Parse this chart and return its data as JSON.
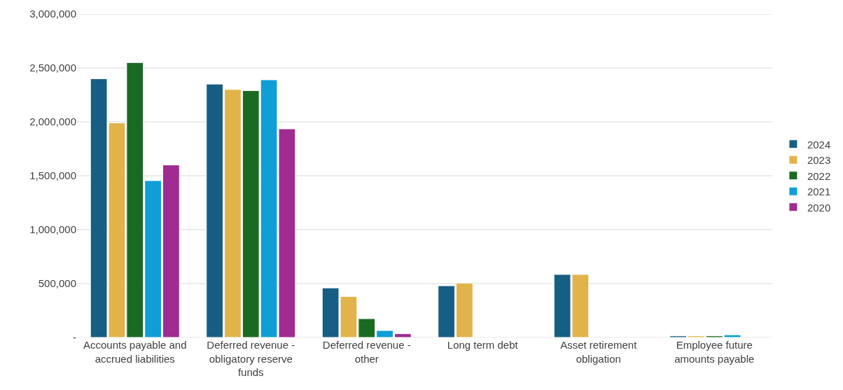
{
  "chart_data": {
    "type": "bar",
    "categories": [
      "Accounts payable and accrued liabilities",
      "Deferred revenue - obligatory reserve funds",
      "Deferred revenue - other",
      "Long term debt",
      "Asset retirement obligation",
      "Employee future amounts payable"
    ],
    "series": [
      {
        "name": "2024",
        "color": "#165e83",
        "values": [
          2400000,
          2350000,
          460000,
          480000,
          585000,
          15000
        ]
      },
      {
        "name": "2023",
        "color": "#e2b34a",
        "values": [
          1990000,
          2300000,
          380000,
          505000,
          585000,
          15000
        ]
      },
      {
        "name": "2022",
        "color": "#1b6a23",
        "values": [
          2550000,
          2290000,
          175000,
          null,
          null,
          15000
        ]
      },
      {
        "name": "2021",
        "color": "#109ed7",
        "values": [
          1455000,
          2390000,
          65000,
          null,
          null,
          25000
        ]
      },
      {
        "name": "2020",
        "color": "#a02b91",
        "values": [
          1600000,
          1935000,
          35000,
          null,
          null,
          null
        ]
      }
    ],
    "ylim": [
      0,
      3000000
    ],
    "yticks": [
      {
        "value": 0,
        "label": "-"
      },
      {
        "value": 500000,
        "label": "500,000"
      },
      {
        "value": 1000000,
        "label": "1,000,000"
      },
      {
        "value": 1500000,
        "label": "1,500,000"
      },
      {
        "value": 2000000,
        "label": "2,000,000"
      },
      {
        "value": 2500000,
        "label": "2,500,000"
      },
      {
        "value": 3000000,
        "label": "3,000,000"
      }
    ],
    "grid": "y",
    "legend": "right"
  }
}
